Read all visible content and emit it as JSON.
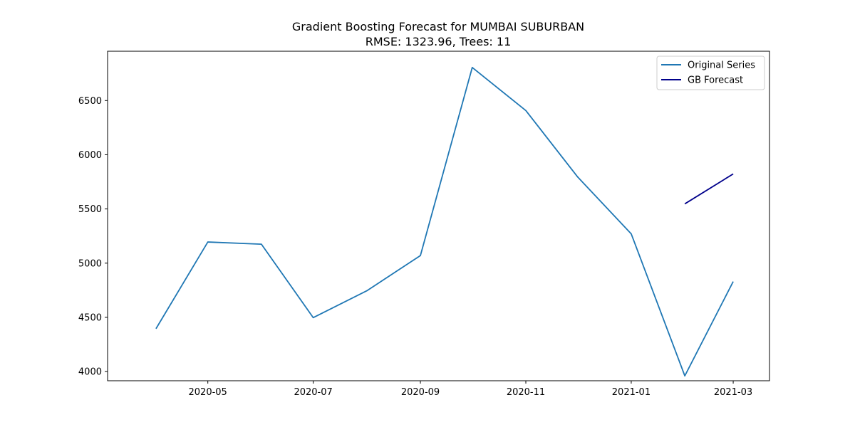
{
  "chart_data": {
    "type": "line",
    "title": "Gradient Boosting Forecast for MUMBAI SUBURBAN",
    "subtitle": "RMSE: 1323.96, Trees: 11",
    "xlabel": "",
    "ylabel": "",
    "x_ticks": [
      "2020-05",
      "2020-07",
      "2020-09",
      "2020-11",
      "2021-01",
      "2021-03"
    ],
    "y_ticks": [
      4000,
      4500,
      5000,
      5500,
      6000,
      6500
    ],
    "xlim": [
      "2020-03-04",
      "2021-03-22"
    ],
    "ylim": [
      3915,
      6955
    ],
    "grid": false,
    "legend_position": "top-right",
    "series": [
      {
        "name": "Original Series",
        "color": "#1f77b4",
        "points": [
          {
            "x": "2020-04-01",
            "y": 4395
          },
          {
            "x": "2020-05-01",
            "y": 5195
          },
          {
            "x": "2020-06-01",
            "y": 5175
          },
          {
            "x": "2020-07-01",
            "y": 4497
          },
          {
            "x": "2020-08-01",
            "y": 4745
          },
          {
            "x": "2020-09-01",
            "y": 5070
          },
          {
            "x": "2020-10-01",
            "y": 6805
          },
          {
            "x": "2020-11-01",
            "y": 6408
          },
          {
            "x": "2020-12-01",
            "y": 5795
          },
          {
            "x": "2021-01-01",
            "y": 5270
          },
          {
            "x": "2021-02-01",
            "y": 3960
          },
          {
            "x": "2021-03-01",
            "y": 4830
          }
        ]
      },
      {
        "name": "GB Forecast",
        "color": "#00008b",
        "points": [
          {
            "x": "2021-02-01",
            "y": 5547
          },
          {
            "x": "2021-03-01",
            "y": 5823
          }
        ]
      }
    ]
  }
}
